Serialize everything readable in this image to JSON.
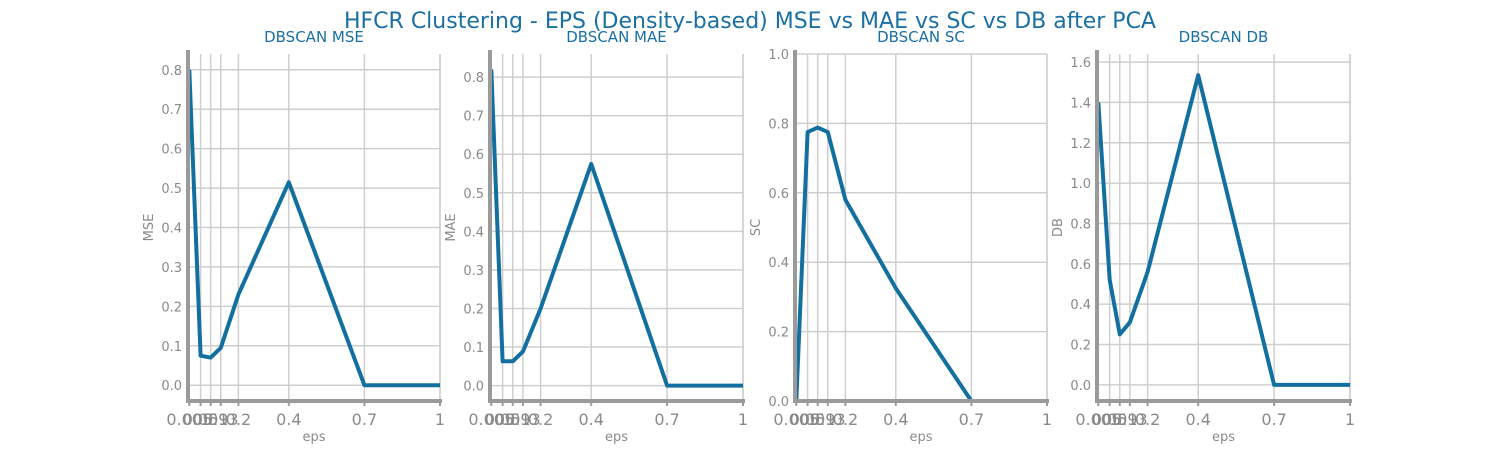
{
  "title": "HFCR Clustering - EPS (Density-based) MSE vs MAE vs SC vs DB after PCA",
  "colors": {
    "series": "#136f9f",
    "title": "#1a6fa3",
    "grid": "#cfcfcf",
    "spine": "#9a9a9a",
    "tick": "#8a8a8a"
  },
  "chart_data": [
    {
      "type": "line",
      "title": "DBSCAN MSE",
      "xlabel": "eps",
      "ylabel": "MSE",
      "grid": true,
      "x": [
        0.005,
        0.05,
        0.09,
        0.13,
        0.2,
        0.4,
        0.7,
        1
      ],
      "x_tick_labels": [
        "0.005",
        "0.05",
        "0.09",
        "0.13",
        "0.2",
        "0.4",
        "0.7",
        "1"
      ],
      "y": [
        0.8,
        0.075,
        0.07,
        0.095,
        0.23,
        0.515,
        0.0,
        0.0
      ],
      "y_ticks": [
        0.0,
        0.1,
        0.2,
        0.3,
        0.4,
        0.5,
        0.6,
        0.7,
        0.8
      ],
      "y_tick_labels": [
        "0.0",
        "0.1",
        "0.2",
        "0.3",
        "0.4",
        "0.5",
        "0.6",
        "0.7",
        "0.8"
      ],
      "xlim": [
        0,
        1
      ],
      "ylim": [
        -0.04,
        0.84
      ]
    },
    {
      "type": "line",
      "title": "DBSCAN MAE",
      "xlabel": "eps",
      "ylabel": "MAE",
      "grid": true,
      "x": [
        0.005,
        0.05,
        0.09,
        0.13,
        0.2,
        0.4,
        0.7,
        1
      ],
      "x_tick_labels": [
        "0.005",
        "0.05",
        "0.09",
        "0.13",
        "0.2",
        "0.4",
        "0.7",
        "1"
      ],
      "y": [
        0.82,
        0.063,
        0.063,
        0.088,
        0.2,
        0.575,
        0.0,
        0.0
      ],
      "y_ticks": [
        0.0,
        0.1,
        0.2,
        0.3,
        0.4,
        0.5,
        0.6,
        0.7,
        0.8
      ],
      "y_tick_labels": [
        "0.0",
        "0.1",
        "0.2",
        "0.3",
        "0.4",
        "0.5",
        "0.6",
        "0.7",
        "0.8"
      ],
      "xlim": [
        0,
        1
      ],
      "ylim": [
        -0.04,
        0.86
      ]
    },
    {
      "type": "line",
      "title": "DBSCAN SC",
      "xlabel": "eps",
      "ylabel": "SC",
      "grid": true,
      "x": [
        0.005,
        0.05,
        0.09,
        0.13,
        0.2,
        0.4,
        0.7,
        1
      ],
      "x_tick_labels": [
        "0.005",
        "0.05",
        "0.09",
        "0.13",
        "0.2",
        "0.4",
        "0.7",
        "1"
      ],
      "y": [
        0.0,
        0.775,
        0.788,
        0.775,
        0.58,
        0.325,
        0.0,
        0.0
      ],
      "y_ticks": [
        0.0,
        0.2,
        0.4,
        0.6,
        0.8,
        1.0
      ],
      "y_tick_labels": [
        "0.0",
        "0.2",
        "0.4",
        "0.6",
        "0.8",
        "1.0"
      ],
      "xlim": [
        0,
        1
      ],
      "ylim": [
        0,
        1.0
      ]
    },
    {
      "type": "line",
      "title": "DBSCAN DB",
      "xlabel": "eps",
      "ylabel": "DB",
      "grid": true,
      "x": [
        0.005,
        0.05,
        0.09,
        0.13,
        0.2,
        0.4,
        0.7,
        1
      ],
      "x_tick_labels": [
        "0.005",
        "0.05",
        "0.09",
        "0.13",
        "0.2",
        "0.4",
        "0.7",
        "1"
      ],
      "y": [
        1.4,
        0.52,
        0.25,
        0.31,
        0.56,
        1.535,
        0.0,
        0.0
      ],
      "y_ticks": [
        0.0,
        0.2,
        0.4,
        0.6,
        0.8,
        1.0,
        1.2,
        1.4,
        1.6
      ],
      "y_tick_labels": [
        "0.0",
        "0.2",
        "0.4",
        "0.6",
        "0.8",
        "1.0",
        "1.2",
        "1.4",
        "1.6"
      ],
      "xlim": [
        0,
        1
      ],
      "ylim": [
        -0.08,
        1.64
      ]
    }
  ]
}
